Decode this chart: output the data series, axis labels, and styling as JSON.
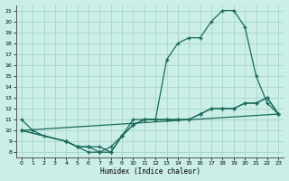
{
  "xlabel": "Humidex (Indice chaleur)",
  "bg_color": "#cceee8",
  "grid_color": "#aad8d0",
  "line_color": "#1a6b5a",
  "xlim": [
    -0.5,
    23.5
  ],
  "ylim": [
    7.5,
    21.5
  ],
  "xticks": [
    0,
    1,
    2,
    3,
    4,
    5,
    6,
    7,
    8,
    9,
    10,
    11,
    12,
    13,
    14,
    15,
    16,
    17,
    18,
    19,
    20,
    21,
    22,
    23
  ],
  "yticks": [
    8,
    9,
    10,
    11,
    12,
    13,
    14,
    15,
    16,
    17,
    18,
    19,
    20,
    21
  ],
  "curve1_x": [
    0,
    1,
    2,
    4,
    5,
    6,
    7,
    8,
    9,
    10,
    11,
    12,
    13,
    14,
    15,
    16,
    17,
    18,
    19,
    20,
    21,
    22,
    23
  ],
  "curve1_y": [
    11,
    10,
    9.5,
    9,
    8.5,
    8.5,
    8,
    8,
    9.5,
    11,
    11,
    11,
    16.5,
    18,
    18.5,
    18.5,
    20,
    21,
    21,
    19.5,
    15,
    12.5,
    11.5
  ],
  "curve2_x": [
    0,
    4,
    5,
    6,
    7,
    8,
    9,
    10,
    11,
    12,
    13,
    14,
    15,
    16,
    17,
    18,
    19,
    20,
    21,
    22,
    23
  ],
  "curve2_y": [
    10,
    9,
    8.5,
    8.5,
    8.5,
    8,
    9.5,
    10.5,
    11,
    11,
    11,
    11,
    11,
    11.5,
    12,
    12,
    12,
    12.5,
    12.5,
    13,
    11.5
  ],
  "curve3_x": [
    0,
    23
  ],
  "curve3_y": [
    10,
    11.5
  ],
  "curve4_x": [
    0,
    4,
    5,
    6,
    7,
    8,
    9,
    10,
    11,
    12,
    13,
    14,
    15,
    16,
    17,
    18,
    19,
    20,
    21,
    22,
    23
  ],
  "curve4_y": [
    10,
    9,
    8.5,
    8,
    8,
    8.5,
    9.5,
    10.5,
    11,
    11,
    11,
    11,
    11,
    11.5,
    12,
    12,
    12,
    12.5,
    12.5,
    13,
    11.5
  ]
}
